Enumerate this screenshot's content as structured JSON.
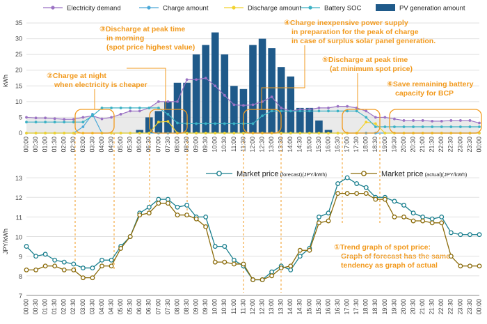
{
  "chart_data": [
    {
      "type": "bar+line",
      "title": "",
      "ylabel": "kWh",
      "ylim": [
        0,
        35
      ],
      "yticks": [
        0,
        5,
        10,
        15,
        20,
        25,
        30,
        35
      ],
      "categories": [
        "00:00",
        "00:30",
        "01:00",
        "01:30",
        "02:00",
        "02:30",
        "03:00",
        "03:30",
        "04:00",
        "04:30",
        "05:00",
        "05:30",
        "06:00",
        "06:30",
        "07:00",
        "07:30",
        "08:00",
        "08:30",
        "09:00",
        "09:30",
        "10:00",
        "10:30",
        "11:00",
        "11:30",
        "12:00",
        "12:30",
        "13:00",
        "13:30",
        "14:00",
        "14:30",
        "15:00",
        "15:30",
        "16:00",
        "16:30",
        "17:00",
        "17:30",
        "18:00",
        "18:30",
        "19:00",
        "19:30",
        "20:00",
        "20:30",
        "21:00",
        "21:30",
        "22:00",
        "22:30",
        "23:00",
        "23:30",
        "00:00"
      ],
      "series": [
        {
          "name": "Electricity demand",
          "kind": "line",
          "color": "#9b72c4",
          "values": [
            5,
            4.8,
            4.8,
            4.6,
            4.4,
            4.4,
            5,
            5.5,
            4.5,
            5,
            6,
            7,
            7,
            8,
            10,
            10,
            10,
            17,
            17,
            17.5,
            15,
            12,
            9,
            8.8,
            9,
            10,
            11.5,
            8,
            7,
            7.5,
            7.5,
            8,
            8,
            8.5,
            8.5,
            8,
            7,
            5,
            5,
            4.5,
            4,
            4,
            4,
            3.8,
            3.8,
            4,
            4,
            4,
            3.2
          ]
        },
        {
          "name": "Charge amount",
          "kind": "line",
          "color": "#4aa8d8",
          "values": [
            0,
            0,
            0,
            0,
            0,
            0,
            2,
            6,
            0,
            0,
            0,
            0,
            0,
            0,
            0,
            0,
            0,
            0,
            0,
            0,
            0,
            0,
            0,
            0,
            0,
            0,
            0,
            0,
            0,
            0,
            0,
            0,
            0,
            0,
            0,
            0,
            0,
            0,
            0,
            0,
            0,
            0,
            0,
            0,
            0,
            0,
            0,
            0,
            0
          ]
        },
        {
          "name": "Discharge amount",
          "kind": "line",
          "color": "#f2d22e",
          "values": [
            0,
            0,
            0,
            0,
            0,
            0,
            0,
            0,
            0,
            0,
            0,
            0,
            0,
            0,
            3.5,
            3.7,
            0,
            0,
            0,
            0,
            0,
            0,
            0,
            0,
            0,
            0,
            0,
            0,
            0,
            0,
            0,
            0,
            0,
            0,
            0,
            0,
            3.5,
            3,
            0,
            0,
            0,
            0,
            0,
            0,
            0,
            0,
            0,
            0,
            0
          ]
        },
        {
          "name": "Battery SOC",
          "kind": "line",
          "color": "#3bb1c4",
          "values": [
            3.5,
            3.5,
            3.5,
            3.5,
            3.5,
            3.5,
            3.5,
            5.5,
            8,
            8,
            8,
            8,
            8,
            8,
            8,
            6,
            3.2,
            3,
            3,
            3,
            3,
            3,
            3,
            3,
            3,
            5.5,
            7,
            7,
            7,
            7,
            7,
            7,
            7,
            7,
            7,
            7,
            5,
            2,
            2,
            2,
            2,
            2,
            2,
            2,
            2,
            2,
            2,
            2,
            2
          ]
        },
        {
          "name": "PV generation amount",
          "kind": "bar",
          "color": "#1f5a8a",
          "values": [
            0,
            0,
            0,
            0,
            0,
            0,
            0,
            0,
            0,
            0,
            0,
            0,
            1,
            5,
            7,
            10,
            16,
            16,
            25,
            28,
            32,
            25,
            15,
            14,
            28,
            30,
            27,
            21,
            18,
            8,
            8,
            4,
            1,
            0,
            0,
            0,
            0,
            0,
            0,
            0,
            0,
            0,
            0,
            0,
            0,
            0,
            0,
            0,
            0
          ]
        }
      ]
    },
    {
      "type": "line",
      "title": "",
      "ylabel": "JPY/kWh",
      "ylim": [
        7,
        13.5
      ],
      "yticks": [
        7,
        8,
        9,
        10,
        11,
        12,
        13
      ],
      "categories": [
        "00:00",
        "00:30",
        "01:00",
        "01:30",
        "02:00",
        "02:30",
        "03:00",
        "03:30",
        "04:00",
        "04:30",
        "05:00",
        "05:30",
        "06:00",
        "06:30",
        "07:00",
        "07:30",
        "08:00",
        "08:30",
        "09:00",
        "09:30",
        "10:00",
        "10:30",
        "11:00",
        "11:30",
        "12:00",
        "12:30",
        "13:00",
        "13:30",
        "14:00",
        "14:30",
        "15:00",
        "15:30",
        "16:00",
        "16:30",
        "17:00",
        "17:30",
        "18:00",
        "18:30",
        "19:00",
        "19:30",
        "20:00",
        "20:30",
        "21:00",
        "21:30",
        "22:00",
        "22:30",
        "23:00",
        "23:30",
        "00:00"
      ],
      "series": [
        {
          "name": "Market price (forecast)(JPY/kWh)",
          "color": "#1a7f8e",
          "values": [
            9.5,
            9.0,
            9.1,
            8.8,
            8.7,
            8.6,
            8.4,
            8.4,
            8.8,
            8.8,
            9.5,
            10.0,
            11.2,
            11.5,
            11.9,
            11.9,
            11.5,
            11.6,
            11.0,
            11.0,
            9.5,
            9.5,
            8.8,
            8.5,
            7.8,
            7.8,
            8.2,
            8.5,
            8.3,
            9.0,
            9.4,
            11.0,
            11.2,
            12.7,
            13.0,
            12.7,
            12.5,
            12.0,
            12.0,
            11.8,
            11.6,
            11.2,
            11.0,
            10.9,
            11.0,
            10.2,
            10.1,
            10.1,
            10.1
          ]
        },
        {
          "name": "Market price (actual)(JPY/kWh)",
          "color": "#8a6a08",
          "values": [
            8.3,
            8.3,
            8.5,
            8.5,
            8.3,
            8.3,
            7.9,
            7.9,
            8.5,
            8.5,
            9.4,
            10.0,
            11.1,
            11.2,
            11.7,
            11.7,
            11.1,
            11.1,
            10.9,
            10.5,
            8.7,
            8.7,
            8.6,
            8.6,
            7.8,
            7.8,
            8.0,
            8.4,
            8.5,
            9.3,
            9.3,
            10.7,
            10.8,
            12.2,
            12.2,
            12.2,
            12.2,
            11.9,
            11.9,
            11.0,
            11.0,
            10.8,
            10.8,
            10.7,
            10.7,
            9.0,
            8.5,
            8.5,
            8.5
          ]
        }
      ]
    }
  ],
  "legend_top": {
    "demand": "Electricity demand",
    "charge": "Charge amount",
    "discharge": "Discharge amount",
    "soc": "Battery SOC",
    "pv": "PV generation amount"
  },
  "legend_bottom": {
    "forecast_main": "Market price",
    "forecast_sub": "(forecast)(JPY/kWh)",
    "actual_main": "Market price",
    "actual_sub": "(actual)(JPY/kWh)"
  },
  "annotations": {
    "a2_l1": "②Charge at night",
    "a2_l2": "when electricity is cheaper",
    "a3_l1": "③Discharge at peak time",
    "a3_l2": "in morning",
    "a3_l3": "(spot price highest value)",
    "a4_l1": "④Charge inexpensive power supply",
    "a4_l2": "in preparation for the peak of charge",
    "a4_l3": "in case of surplus solar panel generation.",
    "a5_l1": "⑤Discharge at peak time",
    "a5_l2": "(at minimum spot price)",
    "a6_l1": "⑥Save remaining battery",
    "a6_l2": "capacity for BCP",
    "a1_l1": "①Trend graph of spot price:",
    "a1_l2": "Graph of forecast has the same",
    "a1_l3": "tendency as graph of actual"
  }
}
